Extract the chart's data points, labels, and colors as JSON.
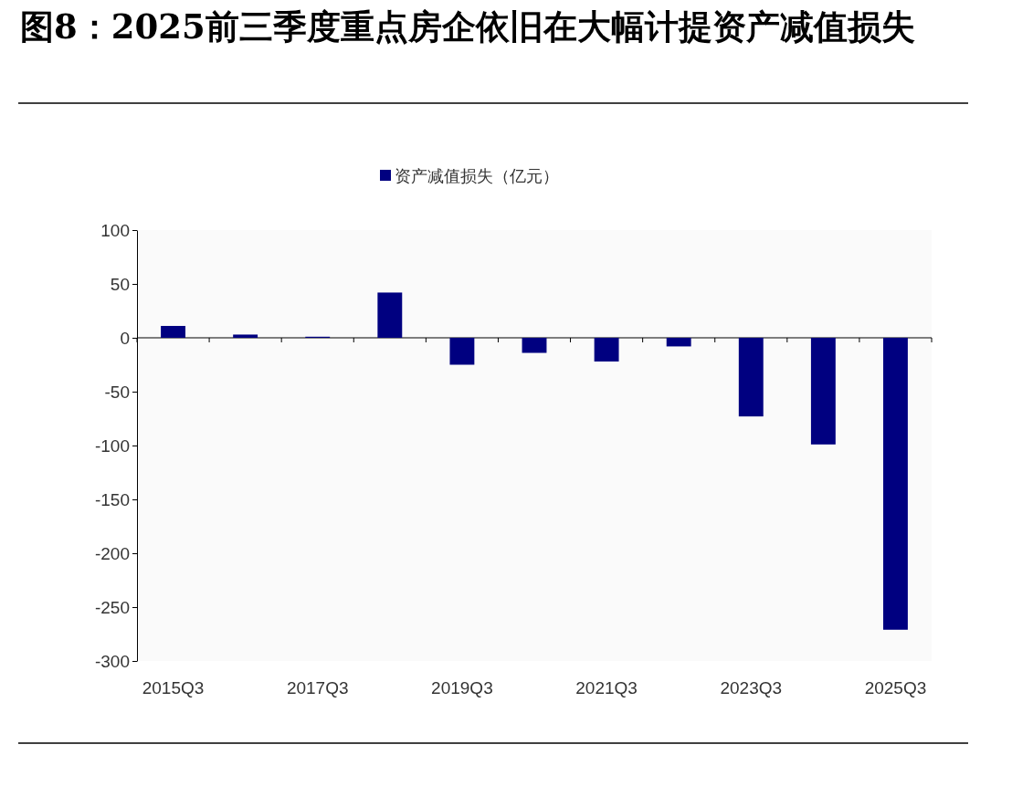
{
  "chart_data": {
    "type": "bar",
    "title": "图8：2025前三季度重点房企依旧在大幅计提资产减值损失",
    "categories": [
      "2015Q3",
      null,
      "2017Q3",
      null,
      "2019Q3",
      null,
      "2021Q3",
      null,
      "2023Q3",
      null,
      "2025Q3"
    ],
    "series": [
      {
        "name": "资产减值损失（亿元）",
        "color": "#000080",
        "values": [
          11,
          3,
          1,
          42,
          -25,
          -14,
          -22,
          -8,
          -73,
          -99,
          -271
        ]
      }
    ],
    "ylim": [
      -300,
      100
    ],
    "yticks": [
      -300,
      -250,
      -200,
      -150,
      -100,
      -50,
      0,
      50,
      100
    ],
    "legend": "top"
  }
}
